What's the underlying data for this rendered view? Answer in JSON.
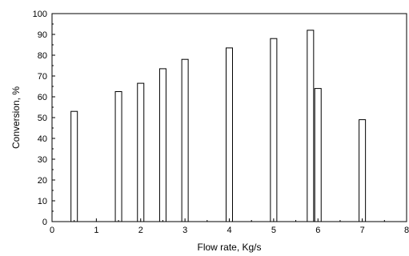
{
  "chart_data": {
    "type": "bar",
    "xlabel": "Flow rate, Kg/s",
    "ylabel": "Conversion, %",
    "xlim": [
      0,
      8
    ],
    "ylim": [
      0,
      100
    ],
    "x_ticks": [
      0,
      1,
      2,
      3,
      4,
      5,
      6,
      7,
      8
    ],
    "y_ticks": [
      0,
      10,
      20,
      30,
      40,
      50,
      60,
      70,
      80,
      90,
      100
    ],
    "grid": false,
    "points": [
      {
        "x": 0.5,
        "y": 53
      },
      {
        "x": 1.5,
        "y": 62.5
      },
      {
        "x": 2.0,
        "y": 66.5
      },
      {
        "x": 2.5,
        "y": 73.5
      },
      {
        "x": 3.0,
        "y": 78
      },
      {
        "x": 4.0,
        "y": 83.5
      },
      {
        "x": 5.0,
        "y": 88
      },
      {
        "x": 5.83,
        "y": 92
      },
      {
        "x": 6.0,
        "y": 64
      },
      {
        "x": 7.0,
        "y": 49
      }
    ]
  }
}
